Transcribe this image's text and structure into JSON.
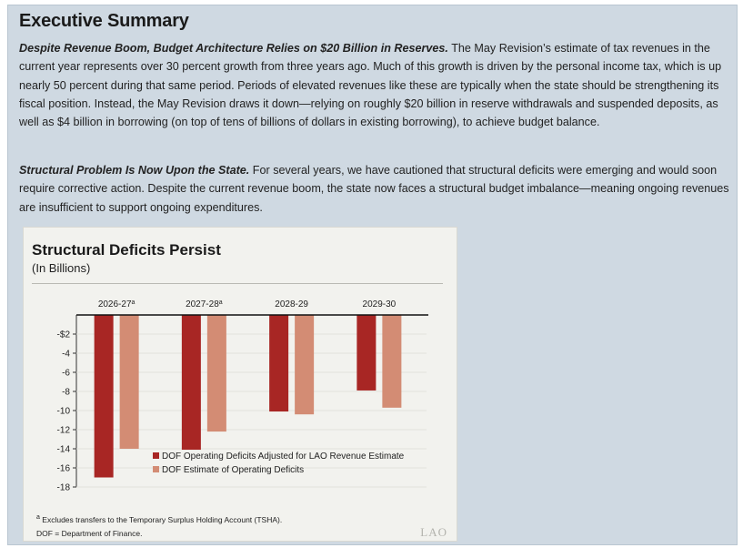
{
  "summary": {
    "heading": "Executive Summary",
    "p1_lead": "Despite Revenue Boom, Budget Architecture Relies on $20 Billion in Reserves.",
    "p1_body": " The May Revision’s estimate of tax revenues in the current year represents over 30 percent growth from three years ago. Much of this growth is driven by the personal income tax, which is up nearly 50 percent during that same period. Periods of elevated revenues like these are typically when the state should be strengthening its fiscal position. Instead, the May Revision draws it down—relying on roughly $20 billion in reserve withdrawals and suspended deposits, as well as $4 billion in borrowing (on top of tens of billions of dollars in existing borrowing), to achieve budget balance.",
    "p2_lead": "Structural Problem Is Now Upon the State.",
    "p2_body": " For several years, we have cautioned that structural deficits were emerging and would soon require corrective action. Despite the current revenue boom, the state now faces a structural budget imbalance—meaning ongoing revenues are insufficient to support ongoing expenditures."
  },
  "figure": {
    "footnote_marker": "a",
    "footnote1": "Excludes transfers to the Temporary Surplus Holding Account (TSHA).",
    "footnote2": "DOF = Department of Finance.",
    "logo_text": "LAO"
  },
  "chart_data": {
    "type": "bar",
    "title": "Structural Deficits Persist",
    "subtitle": "(In Billions)",
    "categories": [
      "2026-27",
      "2027-28",
      "2028-29",
      "2029-30"
    ],
    "category_superscripts": [
      "a",
      "a",
      "",
      ""
    ],
    "series": [
      {
        "name": "DOF Operating Deficits Adjusted for LAO Revenue Estimate",
        "color": "#a82624",
        "values": [
          -17.0,
          -14.1,
          -10.1,
          -7.9
        ]
      },
      {
        "name": "DOF Estimate of Operating Deficits",
        "color": "#d38c74",
        "values": [
          -14.0,
          -12.2,
          -10.4,
          -9.7
        ]
      }
    ],
    "yticks": [
      "-$2",
      "-4",
      "-6",
      "-8",
      "-10",
      "-12",
      "-14",
      "-16",
      "-18"
    ],
    "ytick_values": [
      -2,
      -4,
      -6,
      -8,
      -10,
      -12,
      -14,
      -16,
      -18
    ],
    "ylim": [
      -18,
      0
    ],
    "legend_position": "bottom-right"
  }
}
